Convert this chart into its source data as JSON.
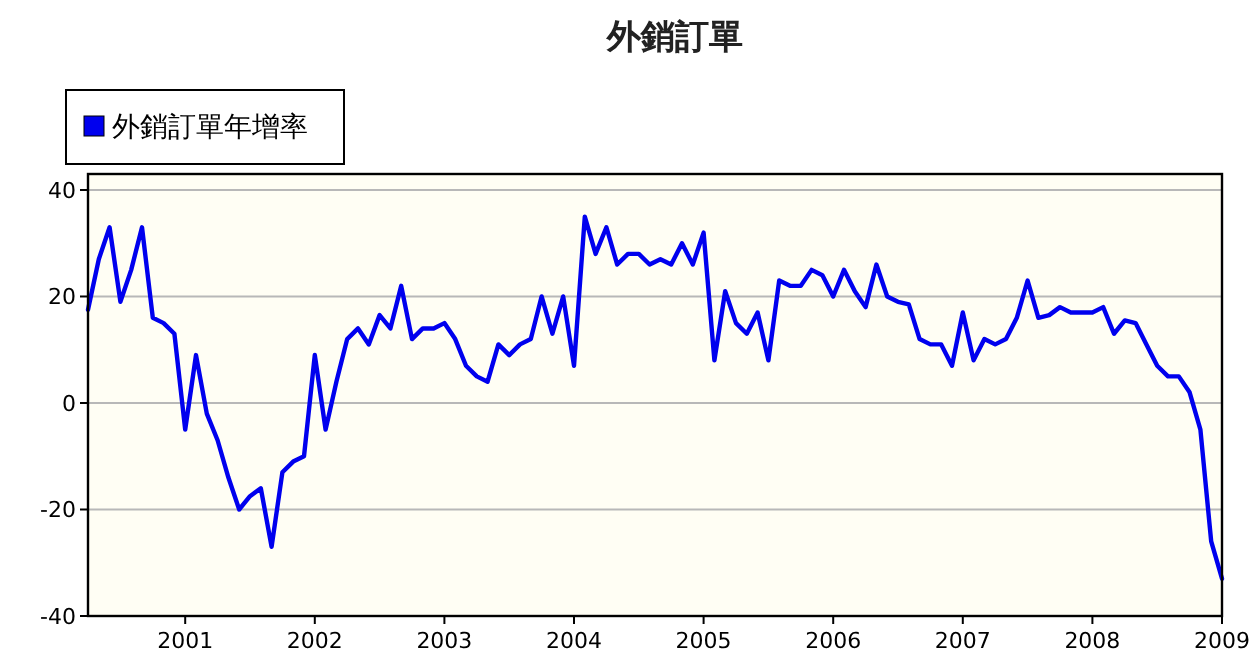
{
  "chart_data": {
    "type": "line",
    "title": "外銷訂單",
    "legend": "top left",
    "grid": "y",
    "line_style": "solid",
    "marker": "none",
    "xlim": [
      "2000-04",
      "2009-01"
    ],
    "ylim": [
      -40,
      43
    ],
    "yticks": [
      -40,
      -20,
      0,
      20,
      40
    ],
    "xticks": [
      "2001",
      "2002",
      "2003",
      "2004",
      "2005",
      "2006",
      "2007",
      "2008",
      "2009"
    ],
    "x": [
      "2000-04",
      "2000-05",
      "2000-06",
      "2000-07",
      "2000-08",
      "2000-09",
      "2000-10",
      "2000-11",
      "2000-12",
      "2001-01",
      "2001-02",
      "2001-03",
      "2001-04",
      "2001-05",
      "2001-06",
      "2001-07",
      "2001-08",
      "2001-09",
      "2001-10",
      "2001-11",
      "2001-12",
      "2002-01",
      "2002-02",
      "2002-03",
      "2002-04",
      "2002-05",
      "2002-06",
      "2002-07",
      "2002-08",
      "2002-09",
      "2002-10",
      "2002-11",
      "2002-12",
      "2003-01",
      "2003-02",
      "2003-03",
      "2003-04",
      "2003-05",
      "2003-06",
      "2003-07",
      "2003-08",
      "2003-09",
      "2003-10",
      "2003-11",
      "2003-12",
      "2004-01",
      "2004-02",
      "2004-03",
      "2004-04",
      "2004-05",
      "2004-06",
      "2004-07",
      "2004-08",
      "2004-09",
      "2004-10",
      "2004-11",
      "2004-12",
      "2005-01",
      "2005-02",
      "2005-03",
      "2005-04",
      "2005-05",
      "2005-06",
      "2005-07",
      "2005-08",
      "2005-09",
      "2005-10",
      "2005-11",
      "2005-12",
      "2006-01",
      "2006-02",
      "2006-03",
      "2006-04",
      "2006-05",
      "2006-06",
      "2006-07",
      "2006-08",
      "2006-09",
      "2006-10",
      "2006-11",
      "2006-12",
      "2007-01",
      "2007-02",
      "2007-03",
      "2007-04",
      "2007-05",
      "2007-06",
      "2007-07",
      "2007-08",
      "2007-09",
      "2007-10",
      "2007-11",
      "2007-12",
      "2008-01",
      "2008-02",
      "2008-03",
      "2008-04",
      "2008-05",
      "2008-06",
      "2008-07",
      "2008-08",
      "2008-09",
      "2008-10",
      "2008-11",
      "2008-12",
      "2009-01"
    ],
    "series": [
      {
        "name": "外銷訂單年增率",
        "color": "#0000ee",
        "values": [
          17.5,
          27,
          33,
          19,
          25,
          33,
          16,
          15,
          13,
          -5,
          9,
          -2,
          -7,
          -14,
          -20,
          -17.5,
          -16,
          -27,
          -13,
          -11,
          -10,
          9,
          -5,
          4,
          12,
          14,
          11,
          16.5,
          14,
          22,
          12,
          14,
          14,
          15,
          12,
          7,
          5,
          4,
          11,
          9,
          11,
          12,
          20,
          13,
          20,
          7,
          35,
          28,
          33,
          26,
          28,
          28,
          26,
          27,
          26,
          30,
          26,
          32,
          8,
          21,
          15,
          13,
          17,
          8,
          23,
          22,
          22,
          25,
          24,
          20,
          25,
          21,
          18,
          26,
          20,
          19,
          18.5,
          12,
          11,
          11,
          7,
          17,
          8,
          12,
          11,
          12,
          16,
          23,
          16,
          16.5,
          18,
          17,
          17,
          17,
          18,
          13,
          15.5,
          15,
          11,
          7,
          5,
          5,
          2,
          -5,
          -26,
          -33
        ]
      }
    ]
  }
}
